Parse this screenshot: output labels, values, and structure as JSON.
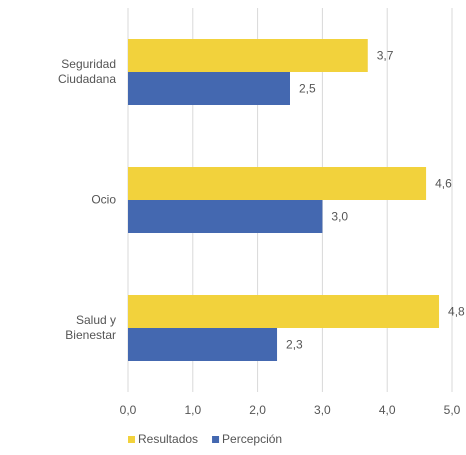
{
  "chart_data": {
    "type": "bar",
    "orientation": "horizontal",
    "categories": [
      "Seguridad Ciudadana",
      "Ocio",
      "Salud y Bienestar"
    ],
    "series": [
      {
        "name": "Resultados",
        "color": "#f2d23c",
        "values": [
          3.7,
          4.6,
          4.8
        ],
        "value_labels": [
          "3,7",
          "4,6",
          "4,8"
        ]
      },
      {
        "name": "Percepción",
        "color": "#4468b0",
        "values": [
          2.5,
          3.0,
          2.3
        ],
        "value_labels": [
          "2,5",
          "3,0",
          "2,3"
        ]
      }
    ],
    "xlim": [
      0,
      5
    ],
    "xticks": [
      {
        "value": 0,
        "label": "0,0"
      },
      {
        "value": 1,
        "label": "1,0"
      },
      {
        "value": 2,
        "label": "2,0"
      },
      {
        "value": 3,
        "label": "3,0"
      },
      {
        "value": 4,
        "label": "4,0"
      },
      {
        "value": 5,
        "label": "5,0"
      }
    ],
    "grid": true,
    "legend": "bottom"
  }
}
